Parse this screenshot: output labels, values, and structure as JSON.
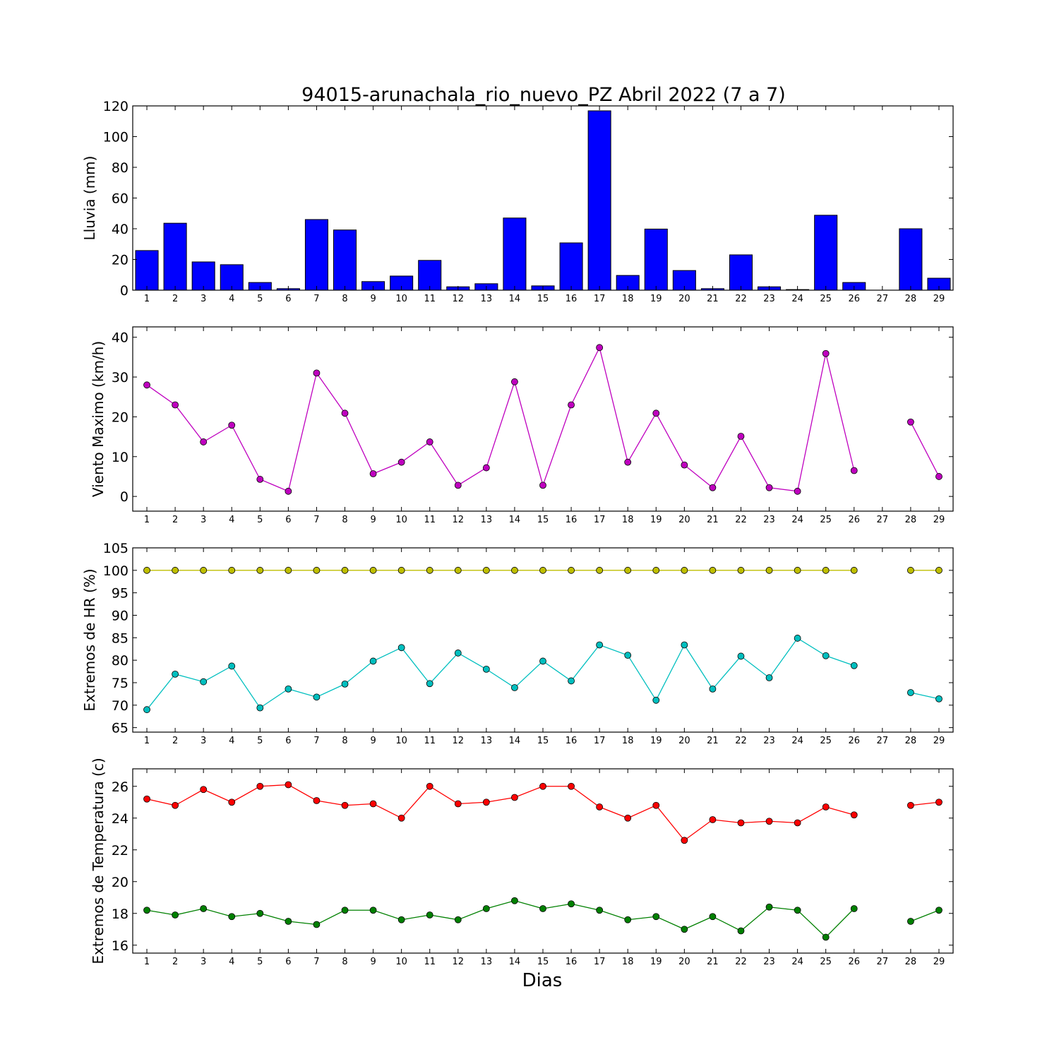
{
  "figure": {
    "title": "94015-arunachala_rio_nuevo_PZ Abril 2022  (7 a 7)",
    "xlabel": "Dias"
  },
  "chart_data": [
    {
      "type": "bar",
      "id": "lluvia",
      "ylabel": "Lluvia (mm)",
      "ylim": [
        0,
        120
      ],
      "yticks": [
        0,
        20,
        40,
        60,
        80,
        100,
        120
      ],
      "x": [
        1,
        2,
        3,
        4,
        5,
        6,
        7,
        8,
        9,
        10,
        11,
        12,
        13,
        14,
        15,
        16,
        17,
        18,
        19,
        20,
        21,
        22,
        23,
        24,
        25,
        26,
        27,
        28,
        29
      ],
      "xticks": [
        1,
        2,
        3,
        4,
        5,
        6,
        7,
        8,
        9,
        10,
        11,
        12,
        13,
        14,
        15,
        16,
        17,
        18,
        19,
        20,
        21,
        22,
        23,
        24,
        25,
        26,
        27,
        28,
        29
      ],
      "color": "#0000ff",
      "values": [
        25.8,
        43.6,
        18.4,
        16.6,
        5.0,
        1.0,
        46.0,
        39.2,
        5.6,
        9.2,
        19.4,
        2.2,
        4.2,
        47.0,
        2.8,
        30.8,
        116.8,
        9.6,
        39.8,
        12.8,
        1.0,
        23.0,
        2.2,
        0.4,
        48.8,
        5.0,
        0.0,
        40.0,
        7.8
      ],
      "grid": false
    },
    {
      "type": "line",
      "id": "viento",
      "ylabel": "Viento Maximo (km/h)",
      "ylim": [
        -3.7,
        42.6
      ],
      "yticks": [
        0,
        10,
        20,
        30,
        40
      ],
      "xticks": [
        1,
        2,
        3,
        4,
        5,
        6,
        7,
        8,
        9,
        10,
        11,
        12,
        13,
        14,
        15,
        16,
        17,
        18,
        19,
        20,
        21,
        22,
        23,
        24,
        25,
        26,
        27,
        28,
        29
      ],
      "grid": false,
      "series": [
        {
          "color": "#bf00bf",
          "x": [
            1,
            2,
            3,
            4,
            5,
            6,
            7,
            8,
            9,
            10,
            11,
            12,
            13,
            14,
            15,
            16,
            17,
            18,
            19,
            20,
            21,
            22,
            23,
            24,
            25,
            26,
            27,
            28,
            29
          ],
          "values": [
            28.0,
            23.0,
            13.7,
            17.9,
            4.3,
            1.3,
            31.0,
            20.9,
            5.7,
            8.6,
            13.7,
            2.8,
            7.2,
            28.8,
            2.8,
            23.0,
            37.4,
            8.6,
            20.9,
            7.9,
            2.2,
            15.1,
            2.2,
            1.3,
            35.9,
            6.5,
            null,
            18.7,
            5.0
          ]
        }
      ]
    },
    {
      "type": "line",
      "id": "hr",
      "ylabel": "Extremos de HR (%)",
      "ylim": [
        64,
        105
      ],
      "yticks": [
        65,
        70,
        75,
        80,
        85,
        90,
        95,
        100,
        105
      ],
      "xticks": [
        1,
        2,
        3,
        4,
        5,
        6,
        7,
        8,
        9,
        10,
        11,
        12,
        13,
        14,
        15,
        16,
        17,
        18,
        19,
        20,
        21,
        22,
        23,
        24,
        25,
        26,
        27,
        28,
        29
      ],
      "grid": false,
      "series": [
        {
          "color": "#bfbf00",
          "x": [
            1,
            2,
            3,
            4,
            5,
            6,
            7,
            8,
            9,
            10,
            11,
            12,
            13,
            14,
            15,
            16,
            17,
            18,
            19,
            20,
            21,
            22,
            23,
            24,
            25,
            26,
            27,
            28,
            29
          ],
          "values": [
            100,
            100,
            100,
            100,
            100,
            100,
            100,
            100,
            100,
            100,
            100,
            100,
            100,
            100,
            100,
            100,
            100,
            100,
            100,
            100,
            100,
            100,
            100,
            100,
            100,
            100,
            null,
            100,
            100
          ]
        },
        {
          "color": "#00bfbf",
          "x": [
            1,
            2,
            3,
            4,
            5,
            6,
            7,
            8,
            9,
            10,
            11,
            12,
            13,
            14,
            15,
            16,
            17,
            18,
            19,
            20,
            21,
            22,
            23,
            24,
            25,
            26,
            27,
            28,
            29
          ],
          "values": [
            69.0,
            76.9,
            75.2,
            78.7,
            69.4,
            73.6,
            71.8,
            74.7,
            79.8,
            82.8,
            74.8,
            81.6,
            78.0,
            73.9,
            79.8,
            75.4,
            83.4,
            81.1,
            71.1,
            83.4,
            73.6,
            80.9,
            76.1,
            84.9,
            81.0,
            78.8,
            null,
            72.8,
            71.4
          ]
        }
      ]
    },
    {
      "type": "line",
      "id": "temperatura",
      "ylabel": "Extremos de Temperatura (c)",
      "ylim": [
        15.5,
        27.1
      ],
      "yticks": [
        16,
        18,
        20,
        22,
        24,
        26
      ],
      "xticks": [
        1,
        2,
        3,
        4,
        5,
        6,
        7,
        8,
        9,
        10,
        11,
        12,
        13,
        14,
        15,
        16,
        17,
        18,
        19,
        20,
        21,
        22,
        23,
        24,
        25,
        26,
        27,
        28,
        29
      ],
      "grid": false,
      "series": [
        {
          "color": "#ff0000",
          "x": [
            1,
            2,
            3,
            4,
            5,
            6,
            7,
            8,
            9,
            10,
            11,
            12,
            13,
            14,
            15,
            16,
            17,
            18,
            19,
            20,
            21,
            22,
            23,
            24,
            25,
            26,
            27,
            28,
            29
          ],
          "values": [
            25.2,
            24.8,
            25.8,
            25.0,
            26.0,
            26.1,
            25.1,
            24.8,
            24.9,
            24.0,
            26.0,
            24.9,
            25.0,
            25.3,
            26.0,
            26.0,
            24.7,
            24.0,
            24.8,
            22.6,
            23.9,
            23.7,
            23.8,
            23.7,
            24.7,
            24.2,
            null,
            24.8,
            25.0
          ]
        },
        {
          "color": "#008000",
          "x": [
            1,
            2,
            3,
            4,
            5,
            6,
            7,
            8,
            9,
            10,
            11,
            12,
            13,
            14,
            15,
            16,
            17,
            18,
            19,
            20,
            21,
            22,
            23,
            24,
            25,
            26,
            27,
            28,
            29
          ],
          "values": [
            18.2,
            17.9,
            18.3,
            17.8,
            18.0,
            17.5,
            17.3,
            18.2,
            18.2,
            17.6,
            17.9,
            17.6,
            18.3,
            18.8,
            18.3,
            18.6,
            18.2,
            17.6,
            17.8,
            17.0,
            17.8,
            16.9,
            18.4,
            18.2,
            16.5,
            18.3,
            null,
            17.5,
            18.2
          ]
        }
      ]
    }
  ]
}
